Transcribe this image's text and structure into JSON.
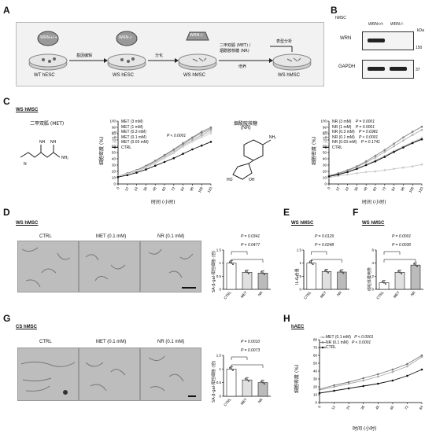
{
  "panels": {
    "A": "A",
    "B": "B",
    "C": "C",
    "D": "D",
    "E": "E",
    "F": "F",
    "G": "G",
    "H": "H"
  },
  "A": {
    "steps": [
      {
        "dish_label": "WRN+/+",
        "caption": "WT hESC"
      },
      {
        "dish_label": "WRN-/-",
        "caption": "WS hESC"
      },
      {
        "dish_label": "WRN-/-",
        "caption": "WS hMSC"
      },
      {
        "dish_label": "",
        "caption": "WS hMSC"
      }
    ],
    "arrows": [
      "基因编辑",
      "分化",
      "二甲双胍 (MET) /\n烟酰胺核糖 (NR)",
      "表型分析"
    ],
    "arrow3_sub": "培养"
  },
  "B": {
    "cell": "hMSC",
    "col1": "WRN+/+",
    "col2": "WRN-/-",
    "unit": "kDa",
    "rows": [
      {
        "protein": "WRN",
        "mw": "150"
      },
      {
        "protein": "GAPDH",
        "mw": "37"
      }
    ]
  },
  "C": {
    "subtitle": "WS hMSC",
    "met_name": "二甲双胍 (MET)",
    "nr_name": "烟酰胺核糖",
    "nr_abbr": "(NR)",
    "ylabel": "细胞密度 (%)",
    "xlabel": "时间 (小时)",
    "left_p": "P < 0.0001",
    "left_legend": [
      "MET (3 mM)",
      "MET (1 mM)",
      "MET (0.3 mM)",
      "MET (0.1 mM)",
      "MET (0.03 mM)",
      "CTRL"
    ],
    "right_legend": [
      {
        "name": "NR (3 mM)",
        "p": "P = 0.0001"
      },
      {
        "name": "NR (1 mM)",
        "p": "P = 0.0001"
      },
      {
        "name": "NR (0.3 mM)",
        "p": "P = 0.6981"
      },
      {
        "name": "NR (0.1 mM)",
        "p": "P < 0.0001"
      },
      {
        "name": "NR (0.03 mM)",
        "p": "P = 0.1741"
      },
      {
        "name": "CTRL",
        "p": ""
      }
    ]
  },
  "D": {
    "subtitle": "WS hMSC",
    "img_labels": [
      "CTRL",
      "MET (0.1 mM)",
      "NR (0.1 mM)"
    ],
    "p1": "P = 0.0341",
    "p2": "P = 0.0477",
    "ylabel": "SA-β-gal-阳性细胞 (倍)",
    "cats": [
      "CTRL",
      "MET",
      "NR"
    ]
  },
  "E": {
    "subtitle": "WS hMSC",
    "p1": "P = 0.0129",
    "p2": "P = 0.0248",
    "ylabel": "IL-6 含量",
    "cats": [
      "CTRL",
      "MET",
      "NR"
    ]
  },
  "F": {
    "subtitle": "WS hMSC",
    "p1": "P = 0.0001",
    "p2": "P = 0.0030",
    "ylabel": "线粒体膜电势",
    "cats": [
      "CTRL",
      "MET",
      "NR"
    ]
  },
  "G": {
    "subtitle": "CS hMSC",
    "img_labels": [
      "CTRL",
      "MET (0.1 mM)",
      "NR (0.1 mM)"
    ],
    "p1": "P = 0.0010",
    "p2": "P = 0.0073",
    "ylabel": "SA-β-gal-阳性细胞 (倍)",
    "cats": [
      "CTRL",
      "MET",
      "NR"
    ]
  },
  "H": {
    "subtitle": "hAEC",
    "legend": [
      {
        "name": "MET (0.1 mM)",
        "p": "P < 0.0001"
      },
      {
        "name": "NR (0.1 mM)",
        "p": "P < 0.0001"
      },
      {
        "name": "CTRL",
        "p": ""
      }
    ],
    "ylabel": "细胞密度 (%)",
    "xlabel": "时间 (小时)"
  },
  "chart_data": [
    {
      "id": "C-left",
      "type": "line",
      "x": [
        0,
        12,
        24,
        36,
        48,
        60,
        72,
        84,
        96,
        108,
        120
      ],
      "ylim": [
        0,
        100
      ],
      "yticks": [
        0,
        10,
        20,
        30,
        40,
        50,
        60,
        70,
        80,
        90,
        100
      ],
      "series": [
        {
          "name": "MET (3 mM)",
          "values": [
            12,
            16,
            20,
            26,
            33,
            41,
            49,
            59,
            68,
            76,
            83
          ]
        },
        {
          "name": "MET (1 mM)",
          "values": [
            12,
            16,
            21,
            27,
            34,
            43,
            51,
            61,
            70,
            78,
            86
          ]
        },
        {
          "name": "MET (0.3 mM)",
          "values": [
            12,
            17,
            22,
            28,
            36,
            45,
            54,
            63,
            73,
            81,
            88
          ]
        },
        {
          "name": "MET (0.1 mM)",
          "values": [
            12,
            17,
            22,
            29,
            37,
            46,
            55,
            65,
            74,
            83,
            90
          ]
        },
        {
          "name": "MET (0.03 mM)",
          "values": [
            12,
            16,
            21,
            27,
            34,
            42,
            50,
            59,
            67,
            74,
            80
          ]
        },
        {
          "name": "CTRL",
          "values": [
            11,
            14,
            18,
            23,
            29,
            35,
            41,
            48,
            55,
            61,
            67
          ]
        }
      ]
    },
    {
      "id": "C-right",
      "type": "line",
      "x": [
        0,
        12,
        24,
        36,
        48,
        60,
        72,
        84,
        96,
        108,
        120
      ],
      "ylim": [
        0,
        100
      ],
      "yticks": [
        0,
        10,
        20,
        30,
        40,
        50,
        60,
        70,
        80,
        90,
        100
      ],
      "series": [
        {
          "name": "NR (3 mM)",
          "values": [
            10,
            13,
            15,
            17,
            19,
            20,
            22,
            24,
            26,
            28,
            31
          ]
        },
        {
          "name": "NR (1 mM)",
          "values": [
            12,
            16,
            21,
            27,
            34,
            42,
            51,
            60,
            69,
            78,
            86
          ]
        },
        {
          "name": "NR (0.3 mM)",
          "values": [
            12,
            15,
            19,
            24,
            30,
            37,
            44,
            52,
            59,
            66,
            72
          ]
        },
        {
          "name": "NR (0.1 mM)",
          "values": [
            13,
            17,
            22,
            28,
            36,
            45,
            54,
            64,
            74,
            83,
            91
          ]
        },
        {
          "name": "NR (0.03 mM)",
          "values": [
            12,
            15,
            20,
            25,
            31,
            38,
            45,
            53,
            60,
            67,
            74
          ]
        },
        {
          "name": "CTRL",
          "values": [
            12,
            15,
            19,
            24,
            30,
            36,
            43,
            51,
            58,
            65,
            71
          ]
        }
      ]
    },
    {
      "id": "D",
      "type": "bar",
      "categories": [
        "CTRL",
        "MET",
        "NR"
      ],
      "values": [
        1.0,
        0.65,
        0.62
      ],
      "ylim": [
        0,
        1.5
      ],
      "yticks": [
        0,
        0.5,
        1.0,
        1.5
      ]
    },
    {
      "id": "E",
      "type": "bar",
      "categories": [
        "CTRL",
        "MET",
        "NR"
      ],
      "values": [
        1.0,
        0.68,
        0.66
      ],
      "ylim": [
        0,
        1.5
      ],
      "yticks": [
        0,
        0.5,
        1.0,
        1.5
      ]
    },
    {
      "id": "F",
      "type": "bar",
      "categories": [
        "CTRL",
        "MET",
        "NR"
      ],
      "values": [
        1.0,
        2.6,
        3.7
      ],
      "ylim": [
        0,
        6
      ],
      "yticks": [
        0,
        2,
        4,
        6
      ]
    },
    {
      "id": "G",
      "type": "bar",
      "categories": [
        "CTRL",
        "MET",
        "NR"
      ],
      "values": [
        1.0,
        0.6,
        0.5
      ],
      "ylim": [
        0,
        1.5
      ],
      "yticks": [
        0,
        0.5,
        1.0,
        1.5
      ]
    },
    {
      "id": "H",
      "type": "line",
      "x": [
        0,
        12,
        24,
        36,
        48,
        60,
        72,
        84
      ],
      "ylim": [
        0,
        80
      ],
      "yticks": [
        0,
        10,
        20,
        30,
        40,
        50,
        60,
        70,
        80
      ],
      "series": [
        {
          "name": "MET (0.1 mM)",
          "values": [
            16,
            20,
            24,
            28,
            33,
            39,
            46,
            58
          ]
        },
        {
          "name": "NR (0.1 mM)",
          "values": [
            17,
            22,
            26,
            31,
            36,
            42,
            49,
            60
          ]
        },
        {
          "name": "CTRL",
          "values": [
            12,
            15,
            18,
            21,
            24,
            28,
            34,
            42
          ]
        }
      ]
    }
  ]
}
